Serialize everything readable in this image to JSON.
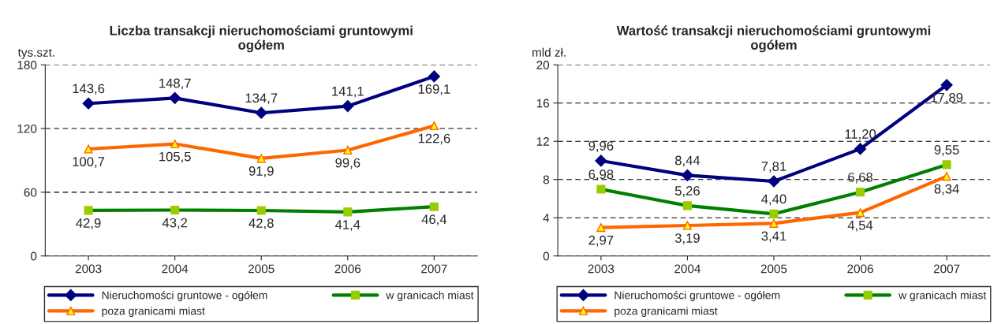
{
  "chart_data": [
    {
      "type": "line",
      "title": "Liczba transakcji nieruchomościami gruntowymi\nogółem",
      "ylabel": "tys.szt.",
      "categories": [
        "2003",
        "2004",
        "2005",
        "2006",
        "2007"
      ],
      "ylim": [
        0,
        180
      ],
      "yticks": [
        0,
        60,
        120,
        180
      ],
      "grid": "y",
      "legend": "bottom",
      "series": [
        {
          "name": "Nieruchomości gruntowe - ogółem",
          "color": "#000080",
          "marker": "diamond",
          "values": [
            143.6,
            148.7,
            134.7,
            141.1,
            169.1
          ],
          "value_labels": [
            "143,6",
            "148,7",
            "134,7",
            "141,1",
            "169,1"
          ]
        },
        {
          "name": "w granicach miast",
          "color": "#008000",
          "marker": "square",
          "values": [
            42.9,
            43.2,
            42.8,
            41.4,
            46.4
          ],
          "value_labels": [
            "42,9",
            "43,2",
            "42,8",
            "41,4",
            "46,4"
          ]
        },
        {
          "name": "poza granicami miast",
          "color": "#ff6600",
          "marker": "triangle",
          "values": [
            100.7,
            105.5,
            91.9,
            99.6,
            122.6
          ],
          "value_labels": [
            "100,7",
            "105,5",
            "91,9",
            "99,6",
            "122,6"
          ]
        }
      ]
    },
    {
      "type": "line",
      "title": "Wartość transakcji nieruchomościami gruntowymi\nogółem",
      "ylabel": "mld zł.",
      "categories": [
        "2003",
        "2004",
        "2005",
        "2006",
        "2007"
      ],
      "ylim": [
        0,
        20
      ],
      "yticks": [
        0,
        4,
        8,
        12,
        16,
        20
      ],
      "grid": "y",
      "legend": "bottom",
      "series": [
        {
          "name": "Nieruchomości gruntowe - ogółem",
          "color": "#000080",
          "marker": "diamond",
          "values": [
            9.96,
            8.44,
            7.81,
            11.2,
            17.89
          ],
          "value_labels": [
            "9,96",
            "8,44",
            "7,81",
            "11,20",
            "17,89"
          ]
        },
        {
          "name": "w granicach miast",
          "color": "#008000",
          "marker": "square",
          "values": [
            6.98,
            5.26,
            4.4,
            6.68,
            9.55
          ],
          "value_labels": [
            "6,98",
            "5,26",
            "4,40",
            "6,68",
            "9,55"
          ]
        },
        {
          "name": "poza granicami miast",
          "color": "#ff6600",
          "marker": "triangle",
          "values": [
            2.97,
            3.19,
            3.41,
            4.54,
            8.34
          ],
          "value_labels": [
            "2,97",
            "3,19",
            "3,41",
            "4,54",
            "8,34"
          ]
        }
      ]
    }
  ]
}
